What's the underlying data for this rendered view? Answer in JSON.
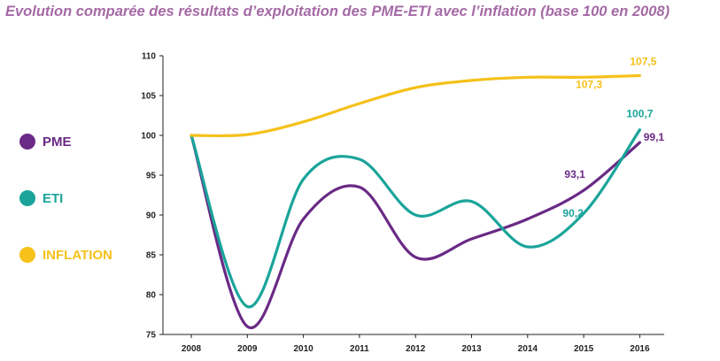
{
  "title": "Evolution comparée des résultats d’exploitation des PME-ETI avec l’inflation (base 100 en 2008)",
  "title_color": "#a56aa6",
  "chart_data": {
    "type": "line",
    "title": "Evolution comparée des résultats d’exploitation des PME-ETI avec l’inflation (base 100 en 2008)",
    "xlabel": "",
    "ylabel": "",
    "categories": [
      "2008",
      "2009",
      "2010",
      "2011",
      "2012",
      "2013",
      "2014",
      "2015",
      "2016"
    ],
    "ylim": [
      75,
      110
    ],
    "yticks": [
      75,
      80,
      85,
      90,
      95,
      100,
      105,
      110
    ],
    "grid": false,
    "legend_position": "left",
    "series": [
      {
        "name": "PME",
        "color": "#6a2a86",
        "values": [
          100,
          76,
          89.5,
          93.5,
          84.7,
          87,
          89.5,
          93.1,
          99.1
        ],
        "labels": [
          {
            "index": 7,
            "text": "93,1"
          },
          {
            "index": 8,
            "text": "99,1"
          }
        ]
      },
      {
        "name": "ETI",
        "color": "#1aa49a",
        "values": [
          100,
          78.5,
          94.5,
          97,
          90,
          91.7,
          86,
          90.2,
          100.7
        ],
        "labels": [
          {
            "index": 7,
            "text": "90,2"
          },
          {
            "index": 8,
            "text": "100,7"
          }
        ]
      },
      {
        "name": "INFLATION",
        "color": "#f5c11a",
        "values": [
          100,
          100.1,
          101.7,
          104,
          106,
          106.9,
          107.3,
          107.3,
          107.5
        ],
        "labels": [
          {
            "index": 7,
            "text": "107,3"
          },
          {
            "index": 8,
            "text": "107,5"
          }
        ]
      }
    ]
  }
}
